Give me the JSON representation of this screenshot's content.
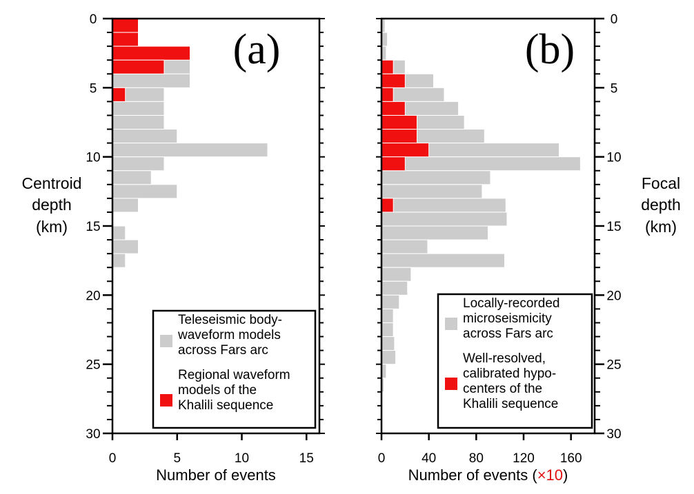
{
  "chart_data": [
    {
      "type": "bar",
      "orientation": "horizontal",
      "panel_label": "(a)",
      "xlabel": "Number of events",
      "xlabel_suffix": "",
      "ylabel": [
        "Centroid",
        "depth",
        "(km)"
      ],
      "xlim": [
        0,
        16
      ],
      "ylim": [
        0,
        30
      ],
      "x_ticks": [
        0,
        5,
        10,
        15
      ],
      "y_ticks": [
        0,
        5,
        10,
        15,
        20,
        25,
        30
      ],
      "bin_width_km": 1,
      "series": [
        {
          "name": "Teleseismic body-waveform models across Fars arc",
          "color": "#cccccc",
          "depth_bins": [
            0,
            1,
            2,
            3,
            4,
            5,
            6,
            7,
            8,
            9,
            10,
            11,
            12,
            13,
            15,
            16,
            17
          ],
          "values": [
            2,
            2,
            6,
            6,
            6,
            4,
            4,
            4,
            5,
            12,
            4,
            3,
            5,
            2,
            1,
            2,
            1
          ]
        },
        {
          "name": "Regional waveform models of the Khalili sequence",
          "color": "#f01010",
          "depth_bins": [
            0,
            1,
            2,
            3,
            5
          ],
          "values": [
            2,
            2,
            6,
            4,
            1
          ]
        }
      ],
      "legend": {
        "position": "bottom-right",
        "entries": [
          [
            "Teleseismic body-",
            "waveform models",
            "across Fars arc"
          ],
          [
            "Regional waveform",
            "models of the",
            "Khalili sequence"
          ]
        ]
      }
    },
    {
      "type": "bar",
      "orientation": "horizontal",
      "panel_label": "(b)",
      "xlabel": "Number of events (",
      "xlabel_suffix": "×10",
      "xlabel_close": ")",
      "suffix_color": "#e01010",
      "ylabel": [
        "Focal",
        "depth",
        "(km)"
      ],
      "xlim": [
        0,
        180
      ],
      "ylim": [
        0,
        30
      ],
      "x_ticks": [
        0,
        40,
        80,
        120,
        160
      ],
      "y_ticks": [
        0,
        5,
        10,
        15,
        20,
        25,
        30
      ],
      "bin_width_km": 1,
      "series": [
        {
          "name": "Locally-recorded microseismicity across Fars arc",
          "color": "#cccccc",
          "depth_bins": [
            0,
            1,
            2,
            3,
            4,
            5,
            6,
            7,
            8,
            9,
            10,
            11,
            12,
            13,
            14,
            15,
            16,
            17,
            18,
            19,
            20,
            21,
            22,
            23,
            24,
            25,
            26
          ],
          "values": [
            3,
            5,
            4,
            20,
            44,
            53,
            65,
            70,
            87,
            150,
            168,
            92,
            85,
            105,
            106,
            90,
            39,
            104,
            25,
            22,
            15,
            10,
            10,
            11,
            12,
            4,
            2
          ]
        },
        {
          "name": "Well-resolved, calibrated hypocenters of the Khalili sequence",
          "color": "#f01010",
          "depth_bins": [
            3,
            4,
            5,
            6,
            7,
            8,
            9,
            10,
            13
          ],
          "values": [
            10,
            20,
            10,
            20,
            30,
            30,
            40,
            20,
            10
          ]
        }
      ],
      "legend": {
        "position": "bottom-right",
        "entries": [
          [
            "Locally-recorded",
            "microseismicity",
            "across Fars arc"
          ],
          [
            "Well-resolved,",
            "calibrated hypo-",
            "centers of the",
            "Khalili sequence"
          ]
        ]
      }
    }
  ]
}
